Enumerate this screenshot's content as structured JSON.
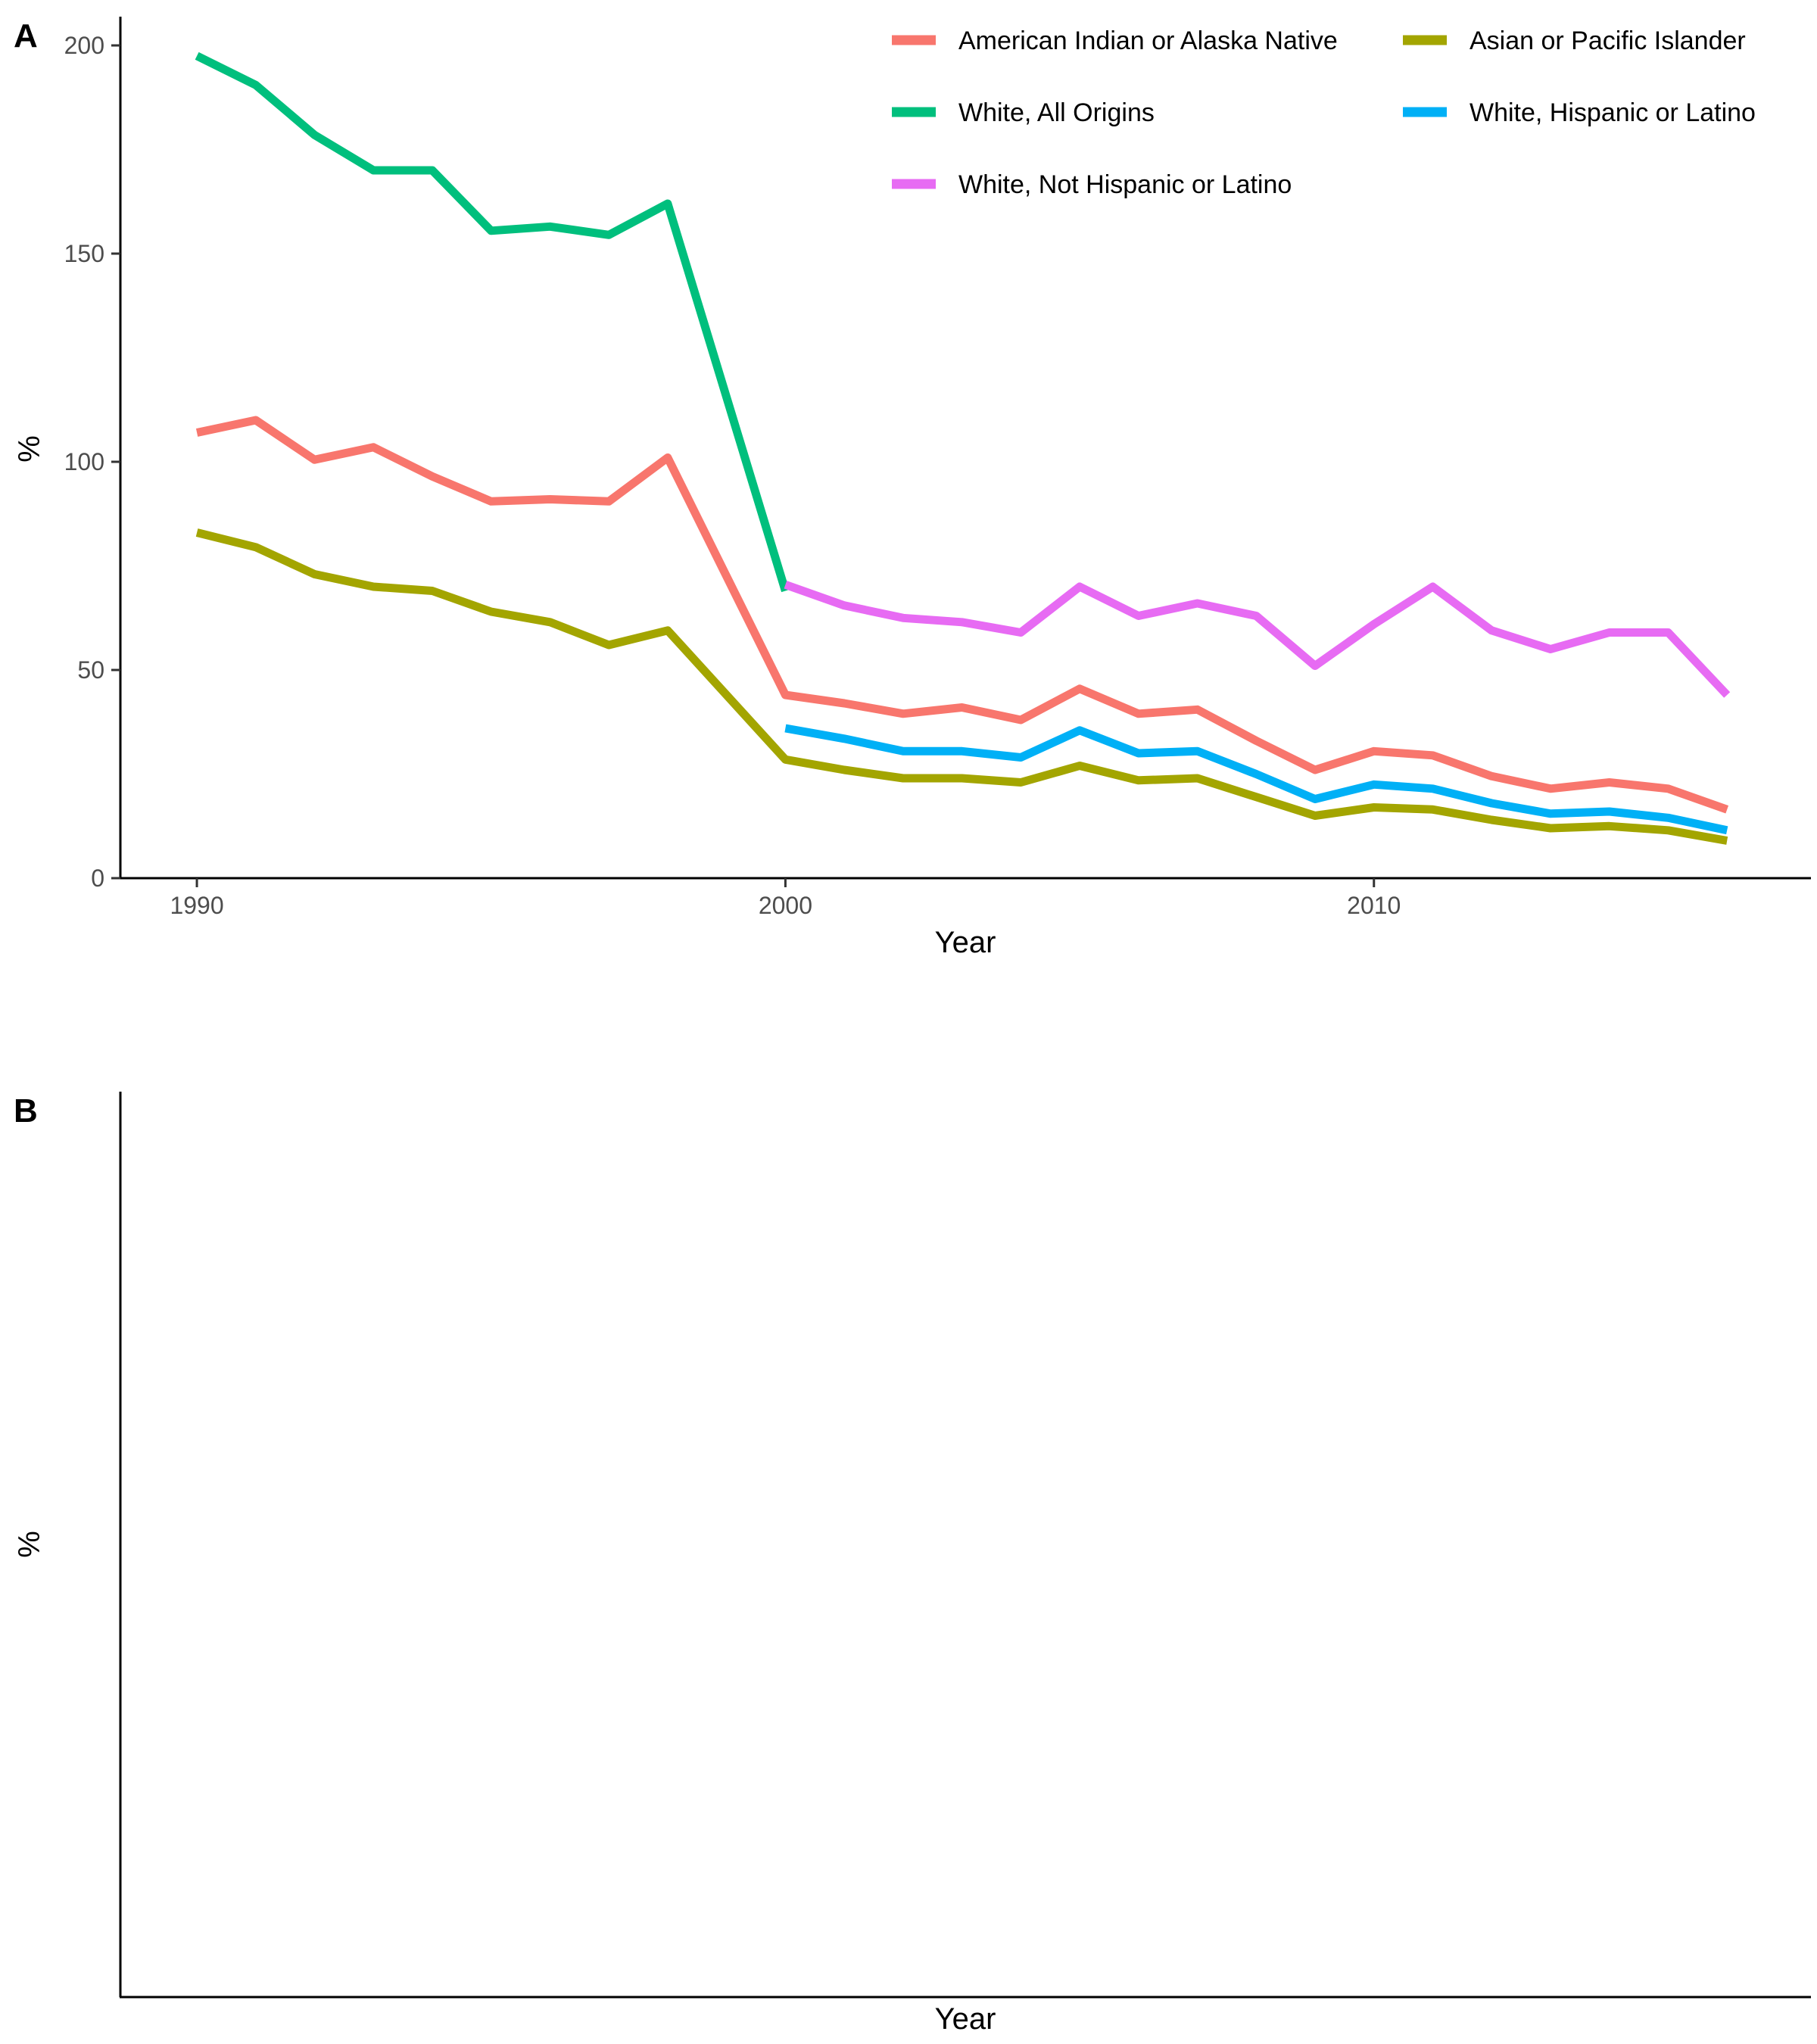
{
  "chart_data": [
    {
      "panel": "A",
      "type": "line",
      "xlabel": "Year",
      "ylabel": "%",
      "xlim": [
        1988.7,
        2017.4
      ],
      "ylim": [
        0,
        200
      ],
      "x_ticks": [
        1990,
        2000,
        2010
      ],
      "y_ticks": [
        0,
        50,
        100,
        150,
        200
      ],
      "grid": false,
      "legend_position": "top-right",
      "series": [
        {
          "name": "American Indian or Alaska Native",
          "color": "#F8766D",
          "points": [
            [
              1990,
              107
            ],
            [
              1991,
              110
            ],
            [
              1992,
              100.5
            ],
            [
              1993,
              103.5
            ],
            [
              1994,
              96.5
            ],
            [
              1995,
              90.5
            ],
            [
              1996,
              91
            ],
            [
              1997,
              90.5
            ],
            [
              1998,
              101
            ],
            [
              2000,
              44
            ],
            [
              2001,
              42
            ],
            [
              2002,
              39.5
            ],
            [
              2003,
              41
            ],
            [
              2004,
              38
            ],
            [
              2005,
              45.5
            ],
            [
              2006,
              39.5
            ],
            [
              2007,
              40.5
            ],
            [
              2008,
              33
            ],
            [
              2009,
              26
            ],
            [
              2010,
              30.5
            ],
            [
              2011,
              29.5
            ],
            [
              2012,
              24.5
            ],
            [
              2013,
              21.5
            ],
            [
              2014,
              23
            ],
            [
              2015,
              21.5
            ],
            [
              2016,
              16.5
            ]
          ]
        },
        {
          "name": "Asian or Pacific Islander",
          "color": "#A3A500",
          "points": [
            [
              1990,
              83
            ],
            [
              1991,
              79.5
            ],
            [
              1992,
              73
            ],
            [
              1993,
              70
            ],
            [
              1994,
              69
            ],
            [
              1995,
              64
            ],
            [
              1996,
              61.5
            ],
            [
              1997,
              56
            ],
            [
              1998,
              59.5
            ],
            [
              2000,
              28.5
            ],
            [
              2001,
              26
            ],
            [
              2002,
              24
            ],
            [
              2003,
              24
            ],
            [
              2004,
              23
            ],
            [
              2005,
              27
            ],
            [
              2006,
              23.5
            ],
            [
              2007,
              24
            ],
            [
              2008,
              19.5
            ],
            [
              2009,
              15
            ],
            [
              2010,
              17
            ],
            [
              2011,
              16.5
            ],
            [
              2012,
              14
            ],
            [
              2013,
              12
            ],
            [
              2014,
              12.5
            ],
            [
              2015,
              11.5
            ],
            [
              2016,
              9
            ]
          ]
        },
        {
          "name": "White, All Origins",
          "color": "#00BF7D",
          "points": [
            [
              1990,
              197.5
            ],
            [
              1991,
              190.5
            ],
            [
              1992,
              178.5
            ],
            [
              1993,
              170
            ],
            [
              1994,
              170
            ],
            [
              1995,
              155.5
            ],
            [
              1996,
              156.5
            ],
            [
              1997,
              154.5
            ],
            [
              1998,
              162
            ],
            [
              2000,
              69
            ]
          ]
        },
        {
          "name": "White, Hispanic or Latino",
          "color": "#00B0F6",
          "points": [
            [
              2000,
              36
            ],
            [
              2001,
              33.5
            ],
            [
              2002,
              30.5
            ],
            [
              2003,
              30.5
            ],
            [
              2004,
              29
            ],
            [
              2005,
              35.5
            ],
            [
              2006,
              30
            ],
            [
              2007,
              30.5
            ],
            [
              2008,
              25
            ],
            [
              2009,
              19
            ],
            [
              2010,
              22.5
            ],
            [
              2011,
              21.5
            ],
            [
              2012,
              18
            ],
            [
              2013,
              15.5
            ],
            [
              2014,
              16
            ],
            [
              2015,
              14.5
            ],
            [
              2016,
              11.5
            ]
          ]
        },
        {
          "name": "White, Not Hispanic or Latino",
          "color": "#E76BF3",
          "points": [
            [
              2000,
              70.5
            ],
            [
              2001,
              65.5
            ],
            [
              2002,
              62.5
            ],
            [
              2003,
              61.5
            ],
            [
              2004,
              59
            ],
            [
              2005,
              70
            ],
            [
              2006,
              63
            ],
            [
              2007,
              66
            ],
            [
              2008,
              63
            ],
            [
              2009,
              51
            ],
            [
              2010,
              61
            ],
            [
              2011,
              70
            ],
            [
              2012,
              59.5
            ],
            [
              2013,
              55
            ],
            [
              2014,
              59
            ],
            [
              2015,
              59
            ],
            [
              2016,
              44
            ]
          ]
        }
      ]
    },
    {
      "panel": "B",
      "type": "line",
      "xlabel": "Year",
      "ylabel": "%",
      "series": []
    }
  ]
}
